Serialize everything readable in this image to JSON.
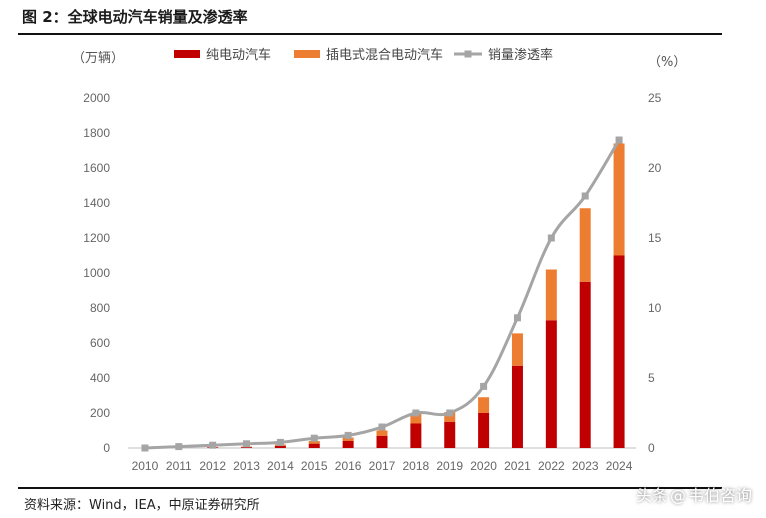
{
  "figure": {
    "title": "图 2：全球电动汽车销量及渗透率",
    "source": "资料来源：Wind，IEA，中原证券研究所",
    "watermark_prefix": "头条",
    "watermark_icon": "@",
    "watermark_name": "韦伯咨询"
  },
  "chart_data": {
    "type": "bar",
    "stacked": true,
    "categories": [
      "2010",
      "2011",
      "2012",
      "2013",
      "2014",
      "2015",
      "2016",
      "2017",
      "2018",
      "2019",
      "2020",
      "2021",
      "2022",
      "2023",
      "2024"
    ],
    "series": [
      {
        "name": "纯电动汽车",
        "type": "bar",
        "axis": "left",
        "color": "#C00000",
        "values": [
          0,
          1,
          3,
          5,
          12,
          25,
          40,
          70,
          140,
          150,
          200,
          470,
          730,
          950,
          1100
        ]
      },
      {
        "name": "插电式混合电动汽车",
        "type": "bar",
        "axis": "left",
        "color": "#ED7D31",
        "values": [
          0,
          0,
          2,
          3,
          8,
          15,
          20,
          30,
          55,
          55,
          90,
          185,
          290,
          420,
          640
        ]
      },
      {
        "name": "销量渗透率",
        "type": "line",
        "axis": "right",
        "color": "#A5A5A5",
        "values": [
          0,
          0.1,
          0.2,
          0.3,
          0.4,
          0.7,
          0.9,
          1.5,
          2.5,
          2.5,
          4.4,
          9.3,
          15,
          18,
          22
        ]
      }
    ],
    "yleft": {
      "unit": "（万辆）",
      "ylim": [
        0,
        2000
      ],
      "ticks": [
        0,
        200,
        400,
        600,
        800,
        1000,
        1200,
        1400,
        1600,
        1800,
        2000
      ]
    },
    "yright": {
      "unit": "（%）",
      "ylim": [
        0,
        25
      ],
      "ticks": [
        0,
        5,
        10,
        15,
        20,
        25
      ]
    },
    "legend": "top",
    "grid": false
  }
}
